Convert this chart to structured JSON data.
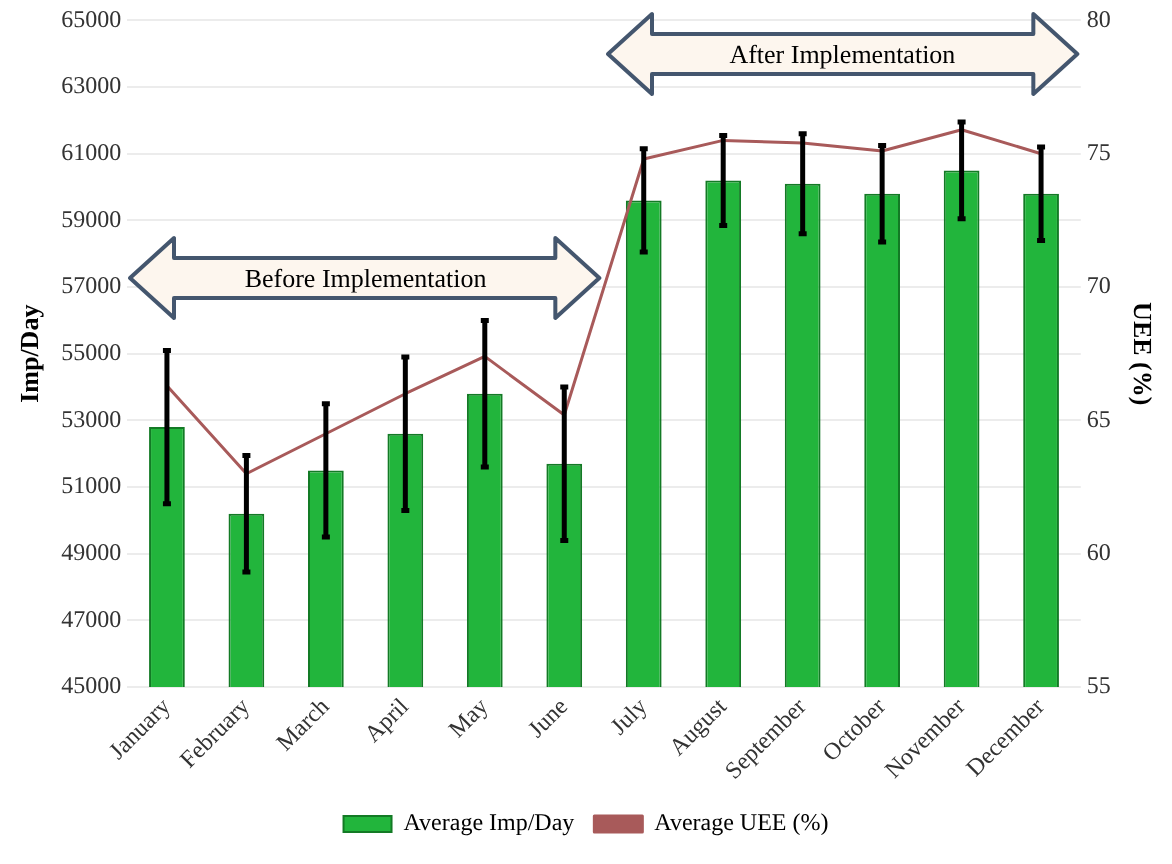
{
  "chart_data": {
    "type": "bar",
    "xlabel": null,
    "ylabel": "Imp/Day",
    "y2label": "UEE (%)",
    "categories": [
      "January",
      "February",
      "March",
      "April",
      "May",
      "June",
      "July",
      "August",
      "September",
      "October",
      "November",
      "December"
    ],
    "series": [
      {
        "name": "Average Imp/Day",
        "color": "#22b53c",
        "values": [
          52800,
          50200,
          51500,
          52600,
          53800,
          51700,
          59600,
          60200,
          60100,
          59800,
          60500,
          59800
        ],
        "errors": [
          2300,
          1750,
          2000,
          2300,
          2200,
          2300,
          1550,
          1350,
          1500,
          1450,
          1450,
          1400
        ]
      },
      {
        "name": "Average UEE (%)",
        "type": "line",
        "axis": "y2",
        "color": "#a85a5a",
        "values": [
          66.3,
          63.0,
          64.5,
          66.0,
          67.4,
          65.2,
          74.8,
          75.5,
          75.4,
          75.1,
          75.9,
          75.0
        ]
      }
    ],
    "ylim": [
      45000,
      65000
    ],
    "yticks": [
      45000,
      47000,
      49000,
      51000,
      53000,
      55000,
      57000,
      59000,
      61000,
      63000,
      65000
    ],
    "y2lim": [
      55,
      80
    ],
    "y2ticks": [
      55,
      60,
      65,
      70,
      75,
      80
    ],
    "annotations": [
      "Before Implementation",
      "After Implementation"
    ],
    "grid": "y",
    "legend": "bottom",
    "marker": "none"
  }
}
